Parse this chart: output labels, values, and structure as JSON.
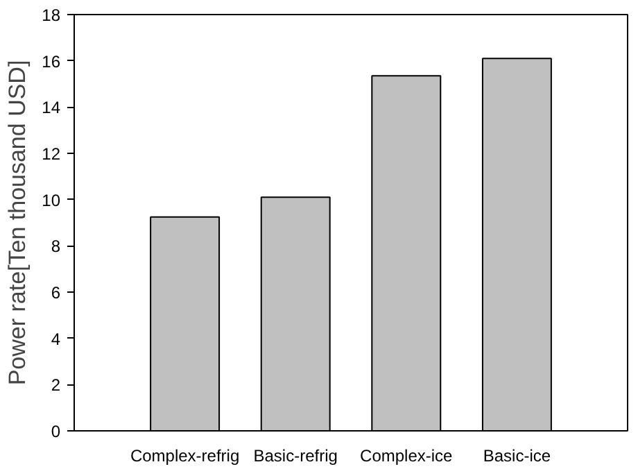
{
  "chart_data": {
    "type": "bar",
    "ylabel": "Power rate[Ten thousand USD]",
    "categories": [
      "Complex-refrig",
      "Basic-refrig",
      "Complex-ice",
      "Basic-ice"
    ],
    "values": [
      9.25,
      10.1,
      15.35,
      16.1
    ],
    "color": "#c0c0c0",
    "ylim": [
      0,
      18
    ],
    "yticks": [
      0,
      2,
      4,
      6,
      8,
      10,
      12,
      14,
      16,
      18
    ],
    "grid": false
  }
}
